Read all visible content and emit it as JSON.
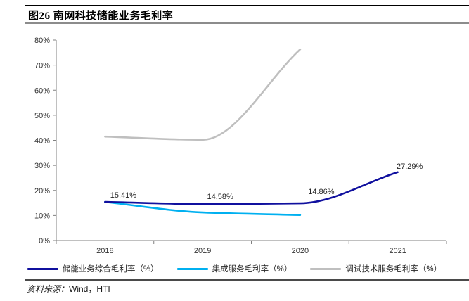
{
  "figure": {
    "title": "图26 南网科技储能业务毛利率"
  },
  "chart_data": {
    "type": "line",
    "title": "南网科技储能业务毛利率",
    "categories": [
      "2018",
      "2019",
      "2020",
      "2021"
    ],
    "series": [
      {
        "name": "储能业务综合毛利率（%）",
        "color": "#10109e",
        "values": [
          15.41,
          14.58,
          14.86,
          27.29
        ],
        "point_labels": [
          "15.41%",
          "14.58%",
          "14.86%",
          "27.29%"
        ]
      },
      {
        "name": "集成服务毛利率（%）",
        "color": "#00b0f0",
        "values": [
          15.4,
          11.2,
          10.2,
          null
        ]
      },
      {
        "name": "调试技术服务毛利率（%）",
        "color": "#bfbfbf",
        "values": [
          41.5,
          40.2,
          76.3,
          null
        ]
      }
    ],
    "xlabel": "",
    "ylabel": "",
    "ylim": [
      0,
      80
    ],
    "y_tick_step": 10,
    "y_tick_labels": [
      "0%",
      "10%",
      "20%",
      "30%",
      "40%",
      "50%",
      "60%",
      "70%",
      "80%"
    ],
    "grid": false,
    "smooth": true,
    "legend_position": "bottom",
    "axis_color": "#808080"
  },
  "source": {
    "prefix": "资料来源：",
    "text": "Wind，HTI"
  }
}
